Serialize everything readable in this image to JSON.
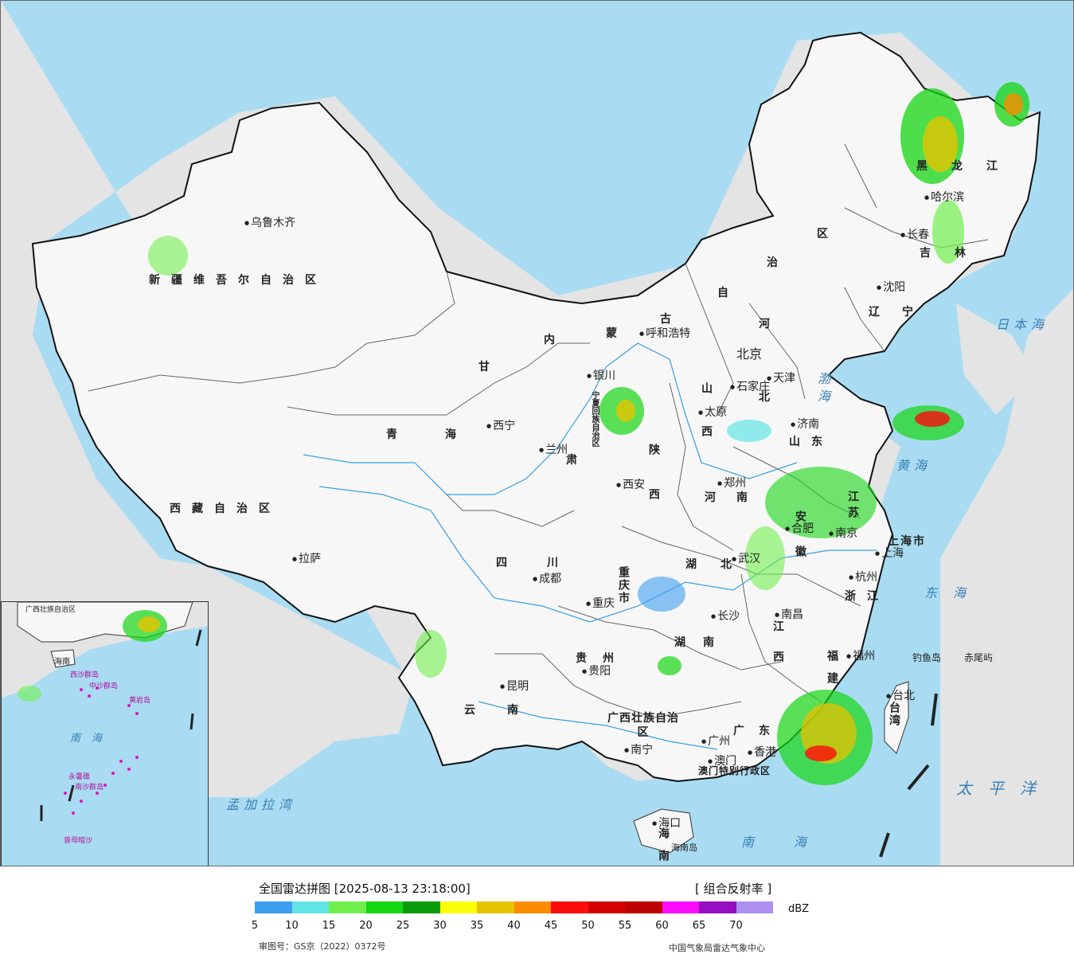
{
  "map": {
    "cities": [
      {
        "id": "urumqi",
        "name": "乌鲁木齐"
      },
      {
        "id": "lhasa",
        "name": "拉萨"
      },
      {
        "id": "xining",
        "name": "西宁"
      },
      {
        "id": "lanzhou",
        "name": "兰州"
      },
      {
        "id": "yinchuan",
        "name": "银川"
      },
      {
        "id": "hohhot",
        "name": "呼和浩特"
      },
      {
        "id": "beijing",
        "name": "北京"
      },
      {
        "id": "tianjin",
        "name": "天津"
      },
      {
        "id": "shijiazhuang",
        "name": "石家庄"
      },
      {
        "id": "taiyuan",
        "name": "太原"
      },
      {
        "id": "jinan",
        "name": "济南"
      },
      {
        "id": "zhengzhou",
        "name": "郑州"
      },
      {
        "id": "xian",
        "name": "西安"
      },
      {
        "id": "chengdu",
        "name": "成都"
      },
      {
        "id": "chongqing",
        "name": "重庆"
      },
      {
        "id": "guiyang",
        "name": "贵阳"
      },
      {
        "id": "kunming",
        "name": "昆明"
      },
      {
        "id": "nanning",
        "name": "南宁"
      },
      {
        "id": "guangzhou",
        "name": "广州"
      },
      {
        "id": "macau",
        "name": "澳门"
      },
      {
        "id": "hongkong",
        "name": "香港"
      },
      {
        "id": "haikou",
        "name": "海口"
      },
      {
        "id": "changsha",
        "name": "长沙"
      },
      {
        "id": "wuhan",
        "name": "武汉"
      },
      {
        "id": "nanchang",
        "name": "南昌"
      },
      {
        "id": "hefei",
        "name": "合肥"
      },
      {
        "id": "nanjing",
        "name": "南京"
      },
      {
        "id": "hangzhou",
        "name": "杭州"
      },
      {
        "id": "shanghai",
        "name": "上海"
      },
      {
        "id": "fuzhou",
        "name": "福州"
      },
      {
        "id": "taibei",
        "name": "台北"
      },
      {
        "id": "shenyang",
        "name": "沈阳"
      },
      {
        "id": "changchun",
        "name": "长春"
      },
      {
        "id": "harbin",
        "name": "哈尔滨"
      }
    ],
    "provinces": [
      {
        "id": "xinjiang",
        "name": "新疆维吾尔自治区"
      },
      {
        "id": "xizang",
        "name": "西藏自治区"
      },
      {
        "id": "qinghai",
        "name": "青海"
      },
      {
        "id": "gansu",
        "name": "甘"
      },
      {
        "id": "su",
        "name": "肃"
      },
      {
        "id": "nmg1",
        "name": "内"
      },
      {
        "id": "nmg2",
        "name": "蒙"
      },
      {
        "id": "nmg3",
        "name": "古"
      },
      {
        "id": "nmg4",
        "name": "自"
      },
      {
        "id": "nmg5",
        "name": "治"
      },
      {
        "id": "nmg6",
        "name": "区"
      },
      {
        "id": "heilongjiang",
        "name": "黑龙江"
      },
      {
        "id": "jilin",
        "name": "吉林"
      },
      {
        "id": "liaoning",
        "name": "辽宁"
      },
      {
        "id": "hebei1",
        "name": "河"
      },
      {
        "id": "hebei2",
        "name": "北"
      },
      {
        "id": "shanxi",
        "name": "山西"
      },
      {
        "id": "shandong",
        "name": "山东"
      },
      {
        "id": "shaanxi",
        "name": "陕西"
      },
      {
        "id": "henan",
        "name": "河南"
      },
      {
        "id": "sichuan",
        "name": "四川"
      },
      {
        "id": "chongqing_p",
        "name": "重庆市"
      },
      {
        "id": "hubei",
        "name": "湖北"
      },
      {
        "id": "anhui",
        "name": "安徽"
      },
      {
        "id": "jiangsu",
        "name": "江苏"
      },
      {
        "id": "shanghai_p",
        "name": "上海市"
      },
      {
        "id": "zhejiang",
        "name": "浙江"
      },
      {
        "id": "guizhou",
        "name": "贵州"
      },
      {
        "id": "hunan",
        "name": "湖南"
      },
      {
        "id": "jiangxi",
        "name": "江西"
      },
      {
        "id": "fujian",
        "name": "福建"
      },
      {
        "id": "yunnan",
        "name": "云南"
      },
      {
        "id": "guangxi",
        "name": "广西壮族自治区"
      },
      {
        "id": "guangdong",
        "name": "广东"
      },
      {
        "id": "hainan",
        "name": "海南"
      },
      {
        "id": "taiwan",
        "name": "台湾"
      },
      {
        "id": "ningxia",
        "name": "宁夏回族自治区"
      },
      {
        "id": "hk_mo",
        "name": "澳门特别行政区"
      }
    ],
    "seas": [
      {
        "id": "bohai",
        "name": "渤海"
      },
      {
        "id": "huanghai",
        "name": "黄海"
      },
      {
        "id": "donghai",
        "name": "东海"
      },
      {
        "id": "nanhai",
        "name": "南海"
      },
      {
        "id": "riben",
        "name": "日本海"
      },
      {
        "id": "taipingyang",
        "name": "太平洋"
      },
      {
        "id": "mengjiala",
        "name": "孟加拉湾"
      }
    ],
    "islands": [
      {
        "id": "diaoyu",
        "name": "钓鱼岛"
      },
      {
        "id": "chiwei",
        "name": "赤尾屿"
      },
      {
        "id": "hainandao",
        "name": "海南岛"
      }
    ],
    "inset_labels": [
      {
        "id": "nanhai",
        "name": "南海"
      },
      {
        "id": "guangxi",
        "name": "广西壮族自治区"
      },
      {
        "id": "hainan",
        "name": "海南"
      },
      {
        "id": "zhongsha",
        "name": "中沙群岛"
      },
      {
        "id": "huangyan",
        "name": "黄岩岛"
      },
      {
        "id": "xisha",
        "name": "西沙群岛"
      },
      {
        "id": "nansha",
        "name": "南沙群岛"
      },
      {
        "id": "yongshu",
        "name": "永暑礁"
      },
      {
        "id": "zengmu",
        "name": "曾母暗沙"
      }
    ]
  },
  "legend": {
    "title": "全国雷达拼图 [2025-08-13 23:18:00]",
    "product": "[ 组合反射率 ]",
    "unit": "dBZ",
    "colors": [
      "#3d9ef0",
      "#63e5e5",
      "#71f04d",
      "#15d613",
      "#0a9c0a",
      "#fbff0a",
      "#e6c300",
      "#fb8c00",
      "#fb0d0d",
      "#d40000",
      "#bd0000",
      "#fb0dfb",
      "#950ec2",
      "#ad8ff0"
    ],
    "ticks": [
      "5",
      "10",
      "15",
      "20",
      "25",
      "30",
      "35",
      "40",
      "45",
      "50",
      "55",
      "60",
      "65",
      "70"
    ],
    "approval": "审图号：GS京（2022）0372号",
    "credit": "中国气象局雷达气象中心"
  }
}
